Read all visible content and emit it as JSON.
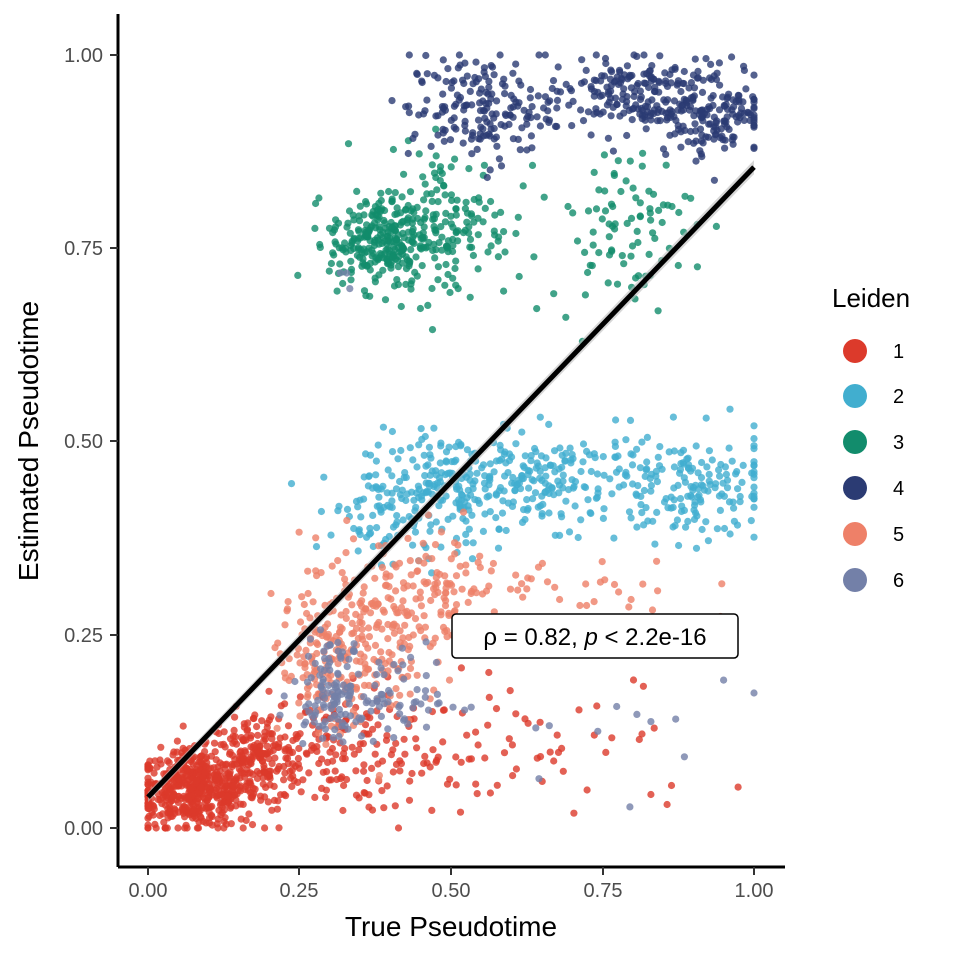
{
  "chart_data": {
    "type": "scatter",
    "title": "",
    "xlabel": "True Pseudotime",
    "ylabel": "Estimated Pseudotime",
    "xlim": [
      -0.05,
      1.05
    ],
    "ylim": [
      -0.05,
      1.05
    ],
    "x_ticks": [
      0.0,
      0.25,
      0.5,
      0.75,
      1.0
    ],
    "y_ticks": [
      0.0,
      0.25,
      0.5,
      0.75,
      1.0
    ],
    "x_tick_labels": [
      "0.00",
      "0.25",
      "0.50",
      "0.75",
      "1.00"
    ],
    "y_tick_labels": [
      "0.00",
      "0.25",
      "0.50",
      "0.75",
      "1.00"
    ],
    "grid": false,
    "legend": {
      "title": "Leiden",
      "position": "right",
      "entries": [
        {
          "label": "1",
          "color": "#DC3A2B"
        },
        {
          "label": "2",
          "color": "#41AECF"
        },
        {
          "label": "3",
          "color": "#128C6C"
        },
        {
          "label": "4",
          "color": "#2B3B73"
        },
        {
          "label": "5",
          "color": "#EE8068"
        },
        {
          "label": "6",
          "color": "#7380A8"
        }
      ]
    },
    "regression_line": {
      "x": [
        0.0,
        1.0
      ],
      "y": [
        0.04,
        0.855
      ],
      "color": "#000000"
    },
    "annotation": {
      "rho_symbol": "ρ",
      "rho_text": " = 0.82, ",
      "p_symbol": "p",
      "p_text": " < 2.2e-16"
    },
    "series": [
      {
        "name": "1",
        "color": "#DC3A2B",
        "clusters": [
          {
            "cx": 0.08,
            "cy": 0.05,
            "sx": 0.05,
            "sy": 0.025,
            "n": 520
          },
          {
            "cx": 0.18,
            "cy": 0.09,
            "sx": 0.04,
            "sy": 0.03,
            "n": 180
          },
          {
            "cx": 0.3,
            "cy": 0.1,
            "sx": 0.06,
            "sy": 0.04,
            "n": 120
          },
          {
            "cx": 0.45,
            "cy": 0.1,
            "sx": 0.08,
            "sy": 0.05,
            "n": 60
          },
          {
            "cx": 0.7,
            "cy": 0.1,
            "sx": 0.12,
            "sy": 0.05,
            "n": 40
          }
        ]
      },
      {
        "name": "2",
        "color": "#41AECF",
        "clusters": [
          {
            "cx": 0.5,
            "cy": 0.44,
            "sx": 0.07,
            "sy": 0.035,
            "n": 200
          },
          {
            "cx": 0.68,
            "cy": 0.45,
            "sx": 0.08,
            "sy": 0.03,
            "n": 160
          },
          {
            "cx": 0.9,
            "cy": 0.44,
            "sx": 0.07,
            "sy": 0.035,
            "n": 160
          },
          {
            "cx": 0.38,
            "cy": 0.41,
            "sx": 0.04,
            "sy": 0.03,
            "n": 60
          }
        ]
      },
      {
        "name": "3",
        "color": "#128C6C",
        "clusters": [
          {
            "cx": 0.38,
            "cy": 0.76,
            "sx": 0.04,
            "sy": 0.03,
            "n": 260
          },
          {
            "cx": 0.5,
            "cy": 0.78,
            "sx": 0.05,
            "sy": 0.05,
            "n": 150
          },
          {
            "cx": 0.78,
            "cy": 0.78,
            "sx": 0.06,
            "sy": 0.05,
            "n": 90
          }
        ]
      },
      {
        "name": "4",
        "color": "#2B3B73",
        "clusters": [
          {
            "cx": 0.55,
            "cy": 0.93,
            "sx": 0.06,
            "sy": 0.035,
            "n": 180
          },
          {
            "cx": 0.78,
            "cy": 0.95,
            "sx": 0.06,
            "sy": 0.025,
            "n": 160
          },
          {
            "cx": 0.93,
            "cy": 0.93,
            "sx": 0.05,
            "sy": 0.03,
            "n": 180
          }
        ]
      },
      {
        "name": "5",
        "color": "#EE8068",
        "clusters": [
          {
            "cx": 0.35,
            "cy": 0.25,
            "sx": 0.05,
            "sy": 0.06,
            "n": 200
          },
          {
            "cx": 0.48,
            "cy": 0.3,
            "sx": 0.05,
            "sy": 0.04,
            "n": 110
          },
          {
            "cx": 0.28,
            "cy": 0.2,
            "sx": 0.04,
            "sy": 0.04,
            "n": 80
          },
          {
            "cx": 0.72,
            "cy": 0.3,
            "sx": 0.1,
            "sy": 0.04,
            "n": 40
          }
        ]
      },
      {
        "name": "6",
        "color": "#7380A8",
        "clusters": [
          {
            "cx": 0.3,
            "cy": 0.18,
            "sx": 0.03,
            "sy": 0.03,
            "n": 110
          },
          {
            "cx": 0.42,
            "cy": 0.17,
            "sx": 0.05,
            "sy": 0.03,
            "n": 60
          },
          {
            "cx": 0.33,
            "cy": 0.72,
            "sx": 0.01,
            "sy": 0.02,
            "n": 3
          },
          {
            "cx": 0.8,
            "cy": 0.12,
            "sx": 0.12,
            "sy": 0.04,
            "n": 12
          }
        ]
      }
    ]
  }
}
